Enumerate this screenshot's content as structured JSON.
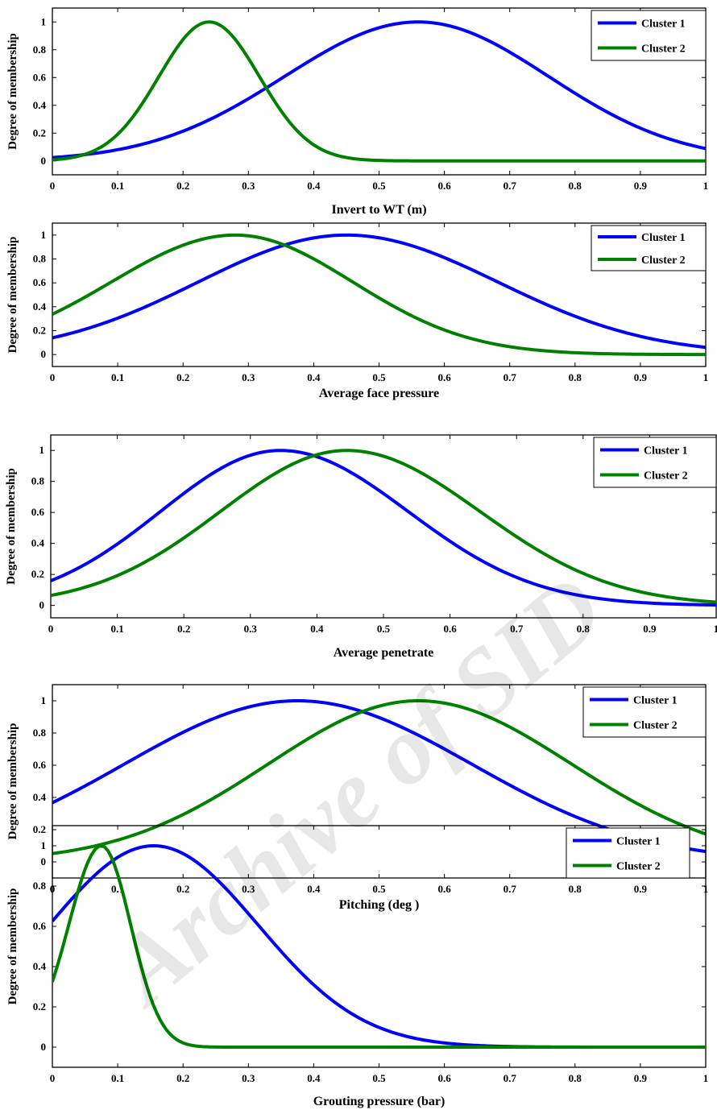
{
  "watermark": "Archive of SID",
  "chart_data": [
    {
      "type": "line",
      "xlabel": "Invert to WT (m)",
      "ylabel": "Degree of membership",
      "xlim": [
        0,
        1
      ],
      "ylim": [
        -0.1,
        1.1
      ],
      "x_ticks": [
        "0",
        "0.1",
        "0.2",
        "0.3",
        "0.4",
        "0.5",
        "0.6",
        "0.7",
        "0.8",
        "0.9",
        "1"
      ],
      "y_ticks": [
        "0",
        "0.2",
        "0.4",
        "0.6",
        "0.8",
        "1"
      ],
      "legend_position": "top-right",
      "series": [
        {
          "name": "Cluster 1",
          "color": "#0000ff",
          "mean": 0.56,
          "sigma_left": 0.205,
          "sigma_right": 0.2,
          "x": [
            0,
            0.1,
            0.2,
            0.3,
            0.4,
            0.5,
            0.56,
            0.6,
            0.7,
            0.8,
            0.9,
            1.0
          ],
          "values": [
            0.02,
            0.08,
            0.19,
            0.38,
            0.67,
            0.94,
            1.0,
            0.98,
            0.81,
            0.55,
            0.29,
            0.09
          ]
        },
        {
          "name": "Cluster 2",
          "color": "#008000",
          "mean": 0.24,
          "sigma_left": 0.077,
          "sigma_right": 0.077,
          "x": [
            0,
            0.1,
            0.15,
            0.2,
            0.24,
            0.3,
            0.35,
            0.4,
            0.45,
            0.5,
            1.0
          ],
          "values": [
            0.01,
            0.17,
            0.54,
            0.87,
            1.0,
            0.72,
            0.32,
            0.09,
            0.02,
            0.0,
            0.0
          ]
        }
      ]
    },
    {
      "type": "line",
      "xlabel": "Average face pressure",
      "ylabel": "Degree of membership",
      "xlim": [
        0,
        1
      ],
      "ylim": [
        -0.1,
        1.1
      ],
      "x_ticks": [
        "0",
        "0.1",
        "0.2",
        "0.3",
        "0.4",
        "0.5",
        "0.6",
        "0.7",
        "0.8",
        "0.9",
        "1"
      ],
      "y_ticks": [
        "0",
        "0.2",
        "0.4",
        "0.6",
        "0.8",
        "1"
      ],
      "legend_position": "top-right",
      "series": [
        {
          "name": "Cluster 1",
          "color": "#0000ff",
          "mean": 0.45,
          "sigma_left": 0.227,
          "sigma_right": 0.232,
          "x": [
            0,
            0.1,
            0.2,
            0.3,
            0.4,
            0.45,
            0.5,
            0.6,
            0.7,
            0.8,
            0.9,
            1.0
          ],
          "values": [
            0.14,
            0.3,
            0.55,
            0.8,
            0.98,
            1.0,
            0.98,
            0.82,
            0.57,
            0.31,
            0.14,
            0.06
          ]
        },
        {
          "name": "Cluster 2",
          "color": "#008000",
          "mean": 0.28,
          "sigma_left": 0.19,
          "sigma_right": 0.18,
          "x": [
            0,
            0.1,
            0.2,
            0.28,
            0.3,
            0.4,
            0.5,
            0.6,
            0.7,
            0.8,
            0.9,
            1.0
          ],
          "values": [
            0.32,
            0.61,
            0.9,
            1.0,
            0.99,
            0.79,
            0.47,
            0.22,
            0.08,
            0.02,
            0.0,
            0.0
          ]
        }
      ]
    },
    {
      "type": "line",
      "xlabel": "Average penetrate",
      "ylabel": "Degree of membership",
      "xlim": [
        0,
        1
      ],
      "ylim": [
        -0.08,
        1.1
      ],
      "x_ticks": [
        "0",
        "0.1",
        "0.2",
        "0.3",
        "0.4",
        "0.5",
        "0.6",
        "0.7",
        "0.8",
        "0.9",
        "1"
      ],
      "y_ticks": [
        "0",
        "0.2",
        "0.4",
        "0.6",
        "0.8",
        "1"
      ],
      "legend_position": "top-right",
      "series": [
        {
          "name": "Cluster 1",
          "color": "#0000ff",
          "mean": 0.345,
          "sigma_left": 0.18,
          "sigma_right": 0.192,
          "x": [
            0,
            0.1,
            0.2,
            0.3,
            0.345,
            0.4,
            0.5,
            0.6,
            0.7,
            0.8,
            0.9,
            1.0
          ],
          "values": [
            0.16,
            0.38,
            0.7,
            0.97,
            1.0,
            0.96,
            0.67,
            0.32,
            0.11,
            0.04,
            0.01,
            0.0
          ]
        },
        {
          "name": "Cluster 2",
          "color": "#008000",
          "mean": 0.445,
          "sigma_left": 0.19,
          "sigma_right": 0.2,
          "x": [
            0,
            0.1,
            0.2,
            0.3,
            0.4,
            0.445,
            0.5,
            0.6,
            0.7,
            0.8,
            0.9,
            1.0
          ],
          "values": [
            0.07,
            0.19,
            0.44,
            0.75,
            0.97,
            1.0,
            0.96,
            0.74,
            0.45,
            0.21,
            0.07,
            0.02
          ]
        }
      ]
    },
    {
      "type": "line",
      "xlabel": "Pitching (deg )",
      "ylabel": "Degree of membership",
      "xlim": [
        0,
        1
      ],
      "ylim": [
        -0.1,
        1.1
      ],
      "x_ticks": [
        "0",
        "0.1",
        "0.2",
        "0.3",
        "0.4",
        "0.5",
        "0.6",
        "0.7",
        "0.8",
        "0.9",
        "1"
      ],
      "y_ticks": [
        "0",
        "0.2",
        "0.4",
        "0.6",
        "0.8",
        "1"
      ],
      "legend_position": "top-right",
      "series": [
        {
          "name": "Cluster 1",
          "color": "#0000ff",
          "mean": 0.375,
          "sigma_left": 0.265,
          "sigma_right": 0.267,
          "x": [
            0,
            0.1,
            0.2,
            0.3,
            0.375,
            0.4,
            0.5,
            0.6,
            0.7,
            0.8,
            0.9,
            1.0
          ],
          "values": [
            0.37,
            0.58,
            0.8,
            0.96,
            1.0,
            0.99,
            0.9,
            0.73,
            0.52,
            0.32,
            0.17,
            0.07
          ]
        },
        {
          "name": "Cluster 2",
          "color": "#008000",
          "mean": 0.56,
          "sigma_left": 0.23,
          "sigma_right": 0.235,
          "x": [
            0,
            0.1,
            0.2,
            0.3,
            0.4,
            0.5,
            0.56,
            0.6,
            0.7,
            0.8,
            0.9,
            1.0
          ],
          "values": [
            0.05,
            0.13,
            0.28,
            0.51,
            0.78,
            0.97,
            1.0,
            0.99,
            0.86,
            0.63,
            0.38,
            0.17
          ]
        }
      ]
    },
    {
      "type": "line",
      "xlabel": "Grouting pressure (bar)",
      "ylabel": "Degree of membership",
      "xlim": [
        0,
        1
      ],
      "ylim": [
        -0.1,
        1.1
      ],
      "x_ticks": [
        "0",
        "0.1",
        "0.2",
        "0.3",
        "0.4",
        "0.5",
        "0.6",
        "0.7",
        "0.8",
        "0.9",
        "1"
      ],
      "y_ticks": [
        "0",
        "0.2",
        "0.4",
        "0.6",
        "0.8",
        "1"
      ],
      "legend_position": "top-right",
      "series": [
        {
          "name": "Cluster 1",
          "color": "#0000ff",
          "mean": 0.155,
          "sigma_left": 0.16,
          "sigma_right": 0.16,
          "x": [
            0,
            0.1,
            0.155,
            0.2,
            0.3,
            0.4,
            0.5,
            0.6,
            0.7,
            0.8,
            1.0
          ],
          "values": [
            0.63,
            0.94,
            1.0,
            0.96,
            0.65,
            0.27,
            0.06,
            0.01,
            0.0,
            0.0,
            0.0
          ]
        },
        {
          "name": "Cluster 2",
          "color": "#008000",
          "mean": 0.075,
          "sigma_left": 0.05,
          "sigma_right": 0.045,
          "x": [
            0,
            0.05,
            0.075,
            0.1,
            0.15,
            0.2,
            0.25,
            0.3,
            1.0
          ],
          "values": [
            0.32,
            0.86,
            1.0,
            0.86,
            0.32,
            0.05,
            0.0,
            0.0,
            0.0
          ]
        }
      ]
    }
  ]
}
